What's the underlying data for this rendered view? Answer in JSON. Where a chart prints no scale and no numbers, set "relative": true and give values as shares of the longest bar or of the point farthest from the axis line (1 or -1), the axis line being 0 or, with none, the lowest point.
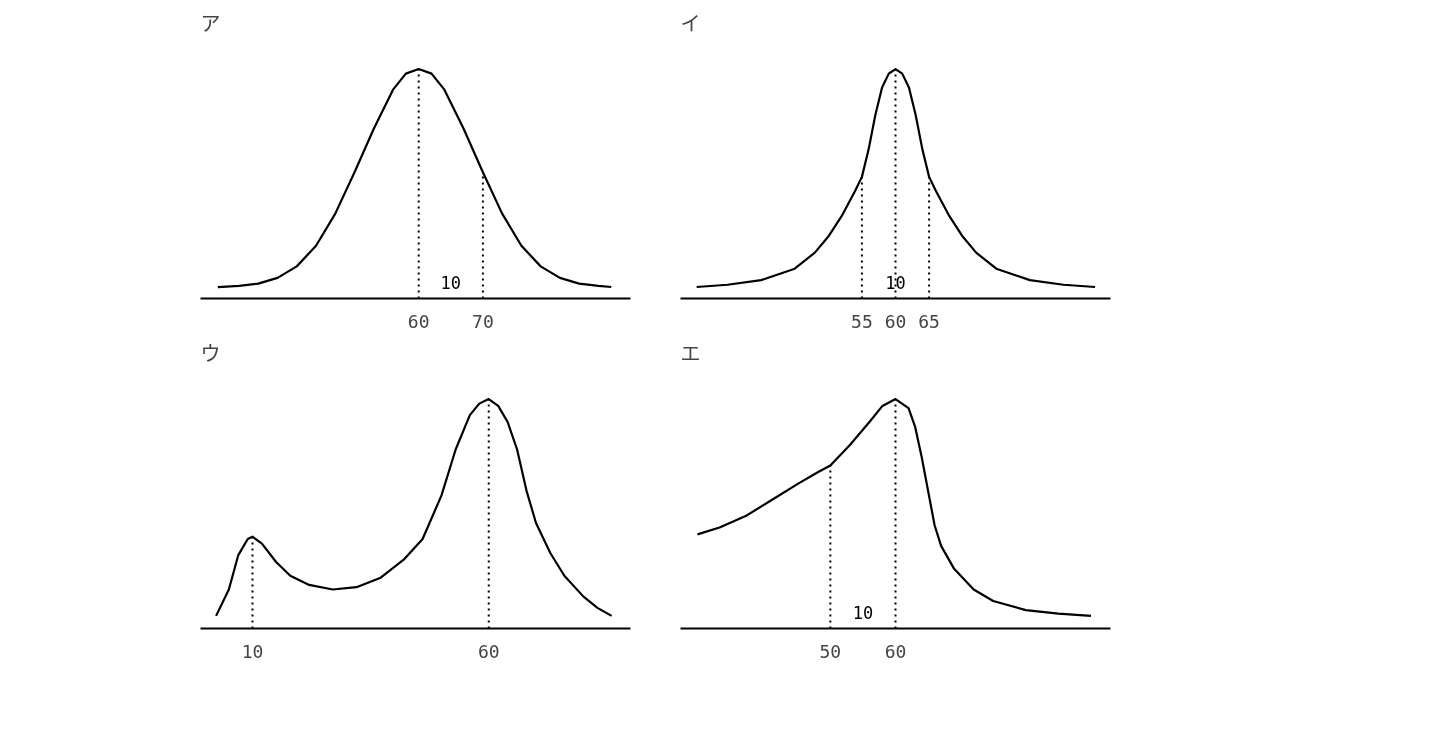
{
  "chart_data": [
    {
      "type": "line",
      "title": "ア",
      "relative": true,
      "xlim": [
        26,
        93
      ],
      "xticks": [
        60,
        70
      ],
      "tick_labels": "x",
      "grid": false,
      "line_style": "solid",
      "series": [
        {
          "color": "#000000",
          "x": [
            28.7,
            32,
            35,
            38,
            41,
            44,
            47,
            50,
            53,
            56,
            58,
            60,
            62,
            64,
            67,
            70,
            73,
            76,
            79,
            82,
            85,
            88,
            90
          ],
          "values": [
            0.05,
            0.055,
            0.065,
            0.09,
            0.14,
            0.23,
            0.37,
            0.55,
            0.74,
            0.91,
            0.98,
            1,
            0.98,
            0.91,
            0.74,
            0.55,
            0.37,
            0.23,
            0.14,
            0.09,
            0.065,
            0.055,
            0.05
          ]
        }
      ],
      "ref_lines": [
        {
          "axis": "x",
          "value": 60,
          "line_style": "dotted"
        },
        {
          "axis": "x",
          "value": 70,
          "line_style": "dotted"
        }
      ],
      "annotations": [
        "10"
      ]
    },
    {
      "type": "line",
      "title": "イ",
      "relative": true,
      "xlim": [
        28,
        92
      ],
      "xticks": [
        55,
        60,
        65
      ],
      "tick_labels": "x",
      "grid": false,
      "line_style": "solid",
      "series": [
        {
          "color": "#000000",
          "x": [
            30.4,
            35,
            40,
            45,
            48,
            50,
            52,
            54,
            55,
            56,
            57,
            58,
            59,
            60,
            61,
            62,
            63,
            64,
            65,
            66,
            68,
            70,
            72,
            75,
            80,
            85,
            89.7
          ],
          "values": [
            0.05,
            0.06,
            0.08,
            0.13,
            0.2,
            0.27,
            0.36,
            0.47,
            0.53,
            0.65,
            0.8,
            0.92,
            0.98,
            1,
            0.98,
            0.92,
            0.8,
            0.65,
            0.53,
            0.47,
            0.36,
            0.27,
            0.2,
            0.13,
            0.08,
            0.06,
            0.05
          ]
        }
      ],
      "ref_lines": [
        {
          "axis": "x",
          "value": 55,
          "line_style": "dotted"
        },
        {
          "axis": "x",
          "value": 60,
          "line_style": "dotted"
        },
        {
          "axis": "x",
          "value": 65,
          "line_style": "dotted"
        }
      ],
      "annotations": [
        "10"
      ]
    },
    {
      "type": "line",
      "title": "ウ",
      "relative": true,
      "xlim": [
        -1,
        90
      ],
      "xticks": [
        10,
        60
      ],
      "tick_labels": "x",
      "grid": false,
      "line_style": "solid",
      "series": [
        {
          "color": "#000000",
          "x": [
            2.3,
            5,
            7,
            9,
            10,
            12,
            15,
            18,
            22,
            27,
            32,
            37,
            42,
            46,
            50,
            53,
            56,
            58,
            60,
            62,
            64,
            66,
            68,
            70,
            73,
            76,
            80,
            83,
            86
          ],
          "values": [
            0.055,
            0.17,
            0.32,
            0.39,
            0.4,
            0.37,
            0.29,
            0.23,
            0.19,
            0.17,
            0.18,
            0.22,
            0.3,
            0.39,
            0.58,
            0.78,
            0.93,
            0.98,
            1,
            0.97,
            0.9,
            0.78,
            0.6,
            0.46,
            0.33,
            0.23,
            0.14,
            0.09,
            0.055
          ]
        }
      ],
      "ref_lines": [
        {
          "axis": "x",
          "value": 10,
          "line_style": "dotted"
        },
        {
          "axis": "x",
          "value": 60,
          "line_style": "dotted"
        }
      ]
    },
    {
      "type": "line",
      "title": "エ",
      "relative": true,
      "xlim": [
        27,
        93
      ],
      "xticks": [
        50,
        60
      ],
      "tick_labels": "x",
      "grid": false,
      "line_style": "solid",
      "series": [
        {
          "color": "#000000",
          "x": [
            29.6,
            33,
            37,
            41,
            45,
            48,
            50,
            53,
            56,
            58,
            60,
            62,
            63,
            64,
            65,
            66,
            67,
            69,
            72,
            75,
            80,
            85,
            90
          ],
          "values": [
            0.41,
            0.44,
            0.49,
            0.56,
            0.63,
            0.68,
            0.71,
            0.8,
            0.9,
            0.97,
            1,
            0.96,
            0.88,
            0.75,
            0.6,
            0.45,
            0.36,
            0.26,
            0.17,
            0.12,
            0.08,
            0.065,
            0.055
          ]
        }
      ],
      "ref_lines": [
        {
          "axis": "x",
          "value": 50,
          "line_style": "dotted"
        },
        {
          "axis": "x",
          "value": 60,
          "line_style": "dotted"
        }
      ],
      "annotations": [
        "10"
      ]
    }
  ]
}
